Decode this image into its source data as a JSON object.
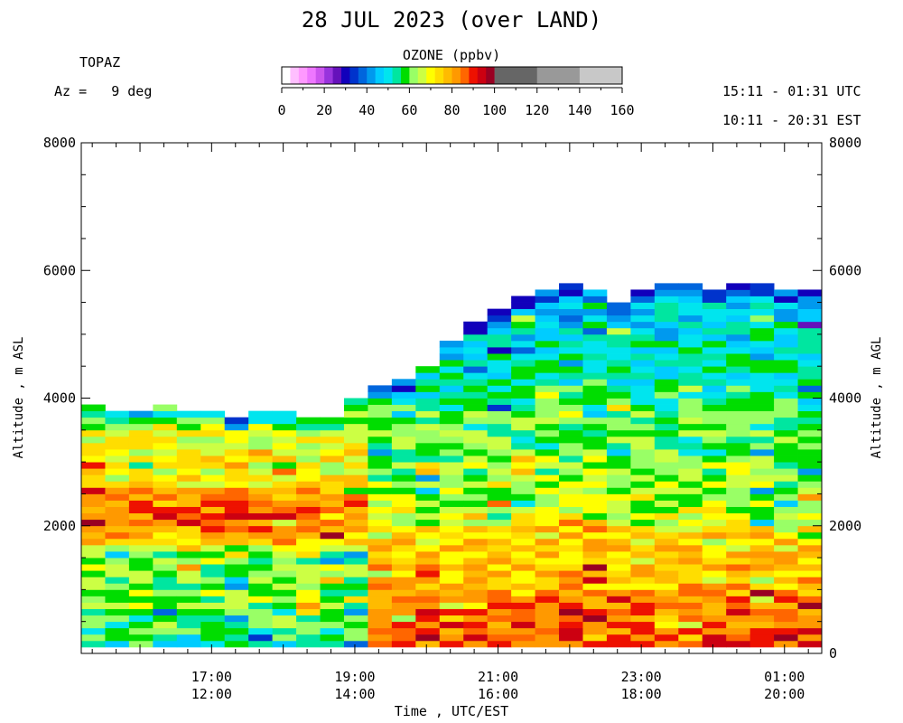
{
  "header": {
    "title": "28 JUL 2023 (over LAND)",
    "instrument": "TOPAZ",
    "azimuth": "Az =   9 deg",
    "utc_range": "15:11 - 01:31 UTC",
    "local_range": "10:11 - 20:31 EST"
  },
  "chart_data": {
    "type": "heatmap",
    "title": "28 JUL 2023 (over LAND)",
    "xlabel": "Time , UTC/EST",
    "ylabel_left": "Altitude , m ASL",
    "ylabel_right": "Altitude , m AGL",
    "x_range_utc_hours": [
      15.18,
      25.52
    ],
    "x_ticks": [
      {
        "utc_hour": 17,
        "utc": "17:00",
        "est": "12:00"
      },
      {
        "utc_hour": 19,
        "utc": "19:00",
        "est": "14:00"
      },
      {
        "utc_hour": 21,
        "utc": "21:00",
        "est": "16:00"
      },
      {
        "utc_hour": 23,
        "utc": "23:00",
        "est": "18:00"
      },
      {
        "utc_hour": 25,
        "utc": "01:00",
        "est": "20:00"
      }
    ],
    "y_range_left": [
      0,
      8000
    ],
    "y_ticks_left": [
      {
        "value": 2000,
        "label": "2000"
      },
      {
        "value": 4000,
        "label": "4000"
      },
      {
        "value": 6000,
        "label": "6000"
      },
      {
        "value": 8000,
        "label": "8000"
      }
    ],
    "y_ticks_right": [
      {
        "value": 0,
        "label": "0"
      },
      {
        "value": 2000,
        "label": "2000"
      },
      {
        "value": 4000,
        "label": "4000"
      },
      {
        "value": 6000,
        "label": "6000"
      },
      {
        "value": 8000,
        "label": "8000"
      }
    ],
    "colorbar": {
      "label": "OZONE (ppbv)",
      "range": [
        0,
        160
      ],
      "ticks": [
        0,
        20,
        40,
        60,
        80,
        100,
        120,
        140,
        160
      ],
      "bins": [
        {
          "from": 0,
          "to": 4,
          "color": "#ffffff"
        },
        {
          "from": 4,
          "to": 8,
          "color": "#ffbfff"
        },
        {
          "from": 8,
          "to": 12,
          "color": "#ff99ff"
        },
        {
          "from": 12,
          "to": 16,
          "color": "#ee77ff"
        },
        {
          "from": 16,
          "to": 20,
          "color": "#cc55ee"
        },
        {
          "from": 20,
          "to": 24,
          "color": "#9933dd"
        },
        {
          "from": 24,
          "to": 28,
          "color": "#6611bb"
        },
        {
          "from": 28,
          "to": 32,
          "color": "#1100bb"
        },
        {
          "from": 32,
          "to": 36,
          "color": "#0033cc"
        },
        {
          "from": 36,
          "to": 40,
          "color": "#0066dd"
        },
        {
          "from": 40,
          "to": 44,
          "color": "#0099ee"
        },
        {
          "from": 44,
          "to": 48,
          "color": "#00ccff"
        },
        {
          "from": 48,
          "to": 52,
          "color": "#00e5ee"
        },
        {
          "from": 52,
          "to": 56,
          "color": "#00e6a0"
        },
        {
          "from": 56,
          "to": 60,
          "color": "#00dd00"
        },
        {
          "from": 60,
          "to": 64,
          "color": "#99ff66"
        },
        {
          "from": 64,
          "to": 68,
          "color": "#ccff44"
        },
        {
          "from": 68,
          "to": 72,
          "color": "#ffff00"
        },
        {
          "from": 72,
          "to": 76,
          "color": "#ffdd00"
        },
        {
          "from": 76,
          "to": 80,
          "color": "#ffbb00"
        },
        {
          "from": 80,
          "to": 84,
          "color": "#ff9900"
        },
        {
          "from": 84,
          "to": 88,
          "color": "#ff6600"
        },
        {
          "from": 88,
          "to": 92,
          "color": "#ee1100"
        },
        {
          "from": 92,
          "to": 96,
          "color": "#cc0011"
        },
        {
          "from": 96,
          "to": 100,
          "color": "#990022"
        },
        {
          "from": 100,
          "to": 120,
          "color": "#666666"
        },
        {
          "from": 120,
          "to": 140,
          "color": "#999999"
        },
        {
          "from": 140,
          "to": 160,
          "color": "#c8c8c8"
        }
      ]
    },
    "profiles": {
      "start_utc_hour": 15.18,
      "step_hours": 0.333,
      "bottom_m": 100,
      "layer_m": 100,
      "top_m": [
        3900,
        3800,
        3750,
        3850,
        3800,
        3750,
        3700,
        3750,
        3800,
        3700,
        3650,
        3950,
        4150,
        4300,
        4500,
        4900,
        5150,
        5400,
        5600,
        5650,
        5750,
        5700,
        5500,
        5650,
        5800,
        5750,
        5700,
        5800,
        5750,
        5700,
        5700
      ]
    }
  }
}
